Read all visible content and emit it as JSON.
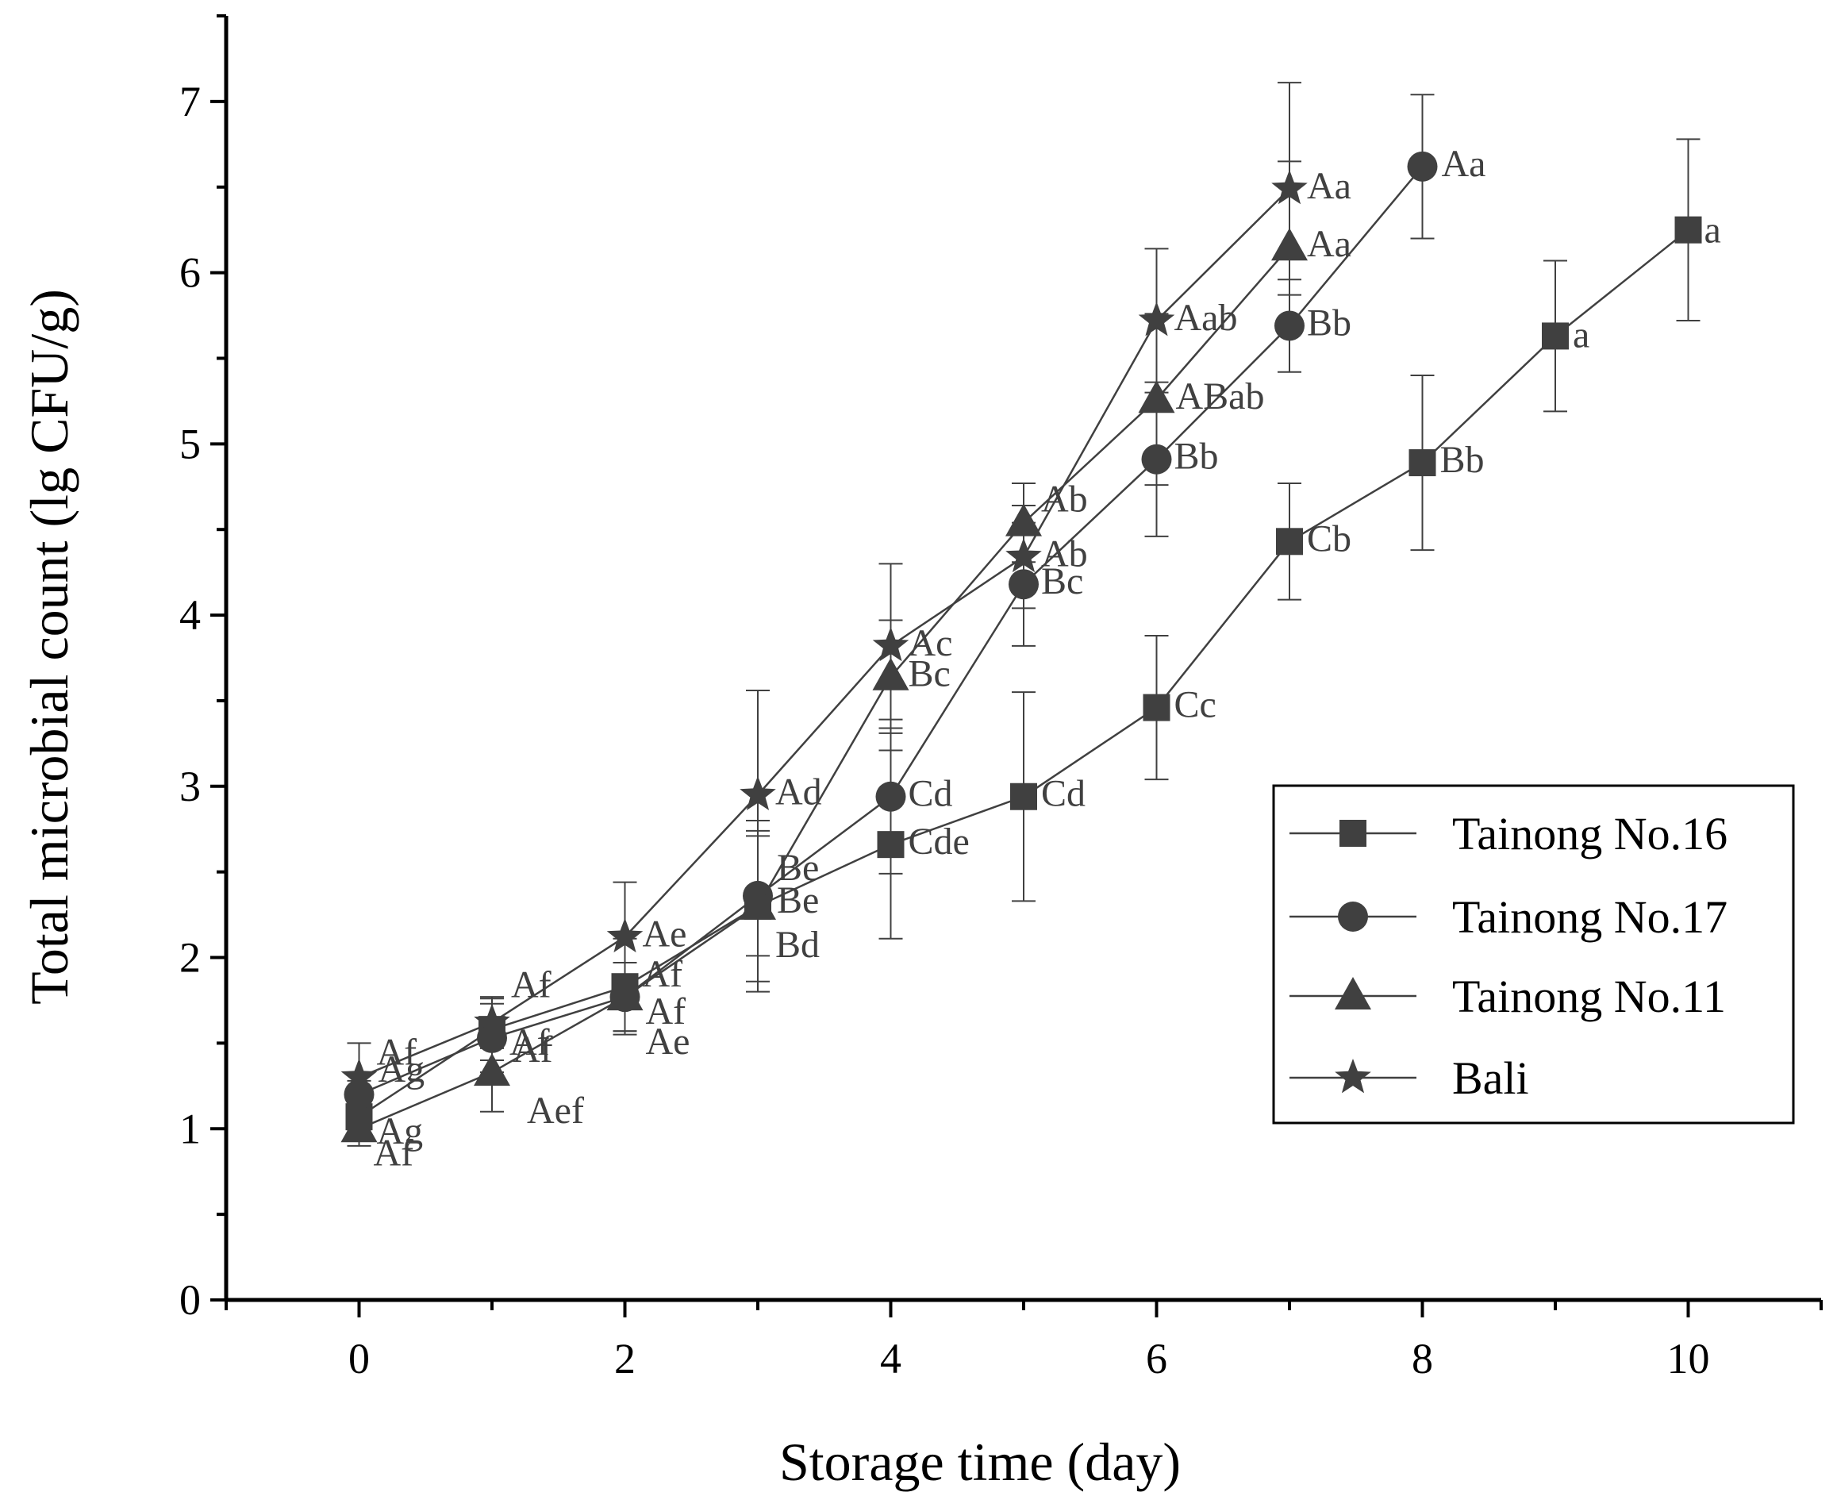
{
  "chart_data": {
    "type": "line",
    "xlabel": "Storage time (day)",
    "ylabel": "Total microbial count (lg CFU/g)",
    "xlim": [
      -1,
      11
    ],
    "ylim": [
      0,
      7.5
    ],
    "xticks": [
      0,
      2,
      4,
      6,
      8,
      10
    ],
    "yticks": [
      0,
      1,
      2,
      3,
      4,
      5,
      6,
      7
    ],
    "x_tick_labels": [
      "0",
      "2",
      "4",
      "6",
      "8",
      "10"
    ],
    "y_tick_labels": [
      "0",
      "1",
      "2",
      "3",
      "4",
      "5",
      "6",
      "7"
    ],
    "legend_position": "right",
    "colors": {
      "series": "#404040",
      "axis": "#000000"
    },
    "series": [
      {
        "name": "Tainong No.16",
        "marker": "square",
        "x": [
          0,
          1,
          2,
          3,
          4,
          5,
          6,
          7,
          8,
          9,
          10
        ],
        "y": [
          1.07,
          1.58,
          1.83,
          2.3,
          2.66,
          2.94,
          3.46,
          4.43,
          4.89,
          5.63,
          6.25
        ],
        "err": [
          0.08,
          0.18,
          0.28,
          0.5,
          0.55,
          0.61,
          0.42,
          0.34,
          0.51,
          0.44,
          0.53
        ],
        "labels": [
          "Ag",
          "Af",
          "Af",
          "Be",
          "Cde",
          "Cd",
          "Cc",
          "Cb",
          "Bb",
          "a",
          "a"
        ]
      },
      {
        "name": "Tainong No.17",
        "marker": "circle",
        "x": [
          0,
          1,
          2,
          3,
          4,
          5,
          6,
          7,
          8
        ],
        "y": [
          1.2,
          1.53,
          1.77,
          2.36,
          2.94,
          4.18,
          4.91,
          5.69,
          6.62
        ],
        "err": [
          0.08,
          0.2,
          0.2,
          0.35,
          0.45,
          0.36,
          0.45,
          0.27,
          0.42
        ],
        "labels": [
          "Ag",
          "Af",
          "Af",
          "Be",
          "Cd",
          "Bc",
          "Bb",
          "Bb",
          "Aa"
        ]
      },
      {
        "name": "Tainong No.11",
        "marker": "triangle",
        "x": [
          0,
          1,
          2,
          3,
          4,
          5,
          6,
          7
        ],
        "y": [
          1.0,
          1.33,
          1.77,
          2.3,
          3.64,
          4.54,
          5.26,
          6.15
        ],
        "err": [
          0.1,
          0.23,
          0.2,
          0.44,
          0.33,
          0.23,
          0.5,
          0.5
        ],
        "labels": [
          "Af",
          "Aef",
          "Ae",
          "Bd",
          "Bc",
          "Ab",
          "ABab",
          "Aa"
        ]
      },
      {
        "name": "Bali",
        "marker": "star",
        "x": [
          0,
          1,
          2,
          3,
          4,
          5,
          6,
          7
        ],
        "y": [
          1.3,
          1.62,
          2.12,
          2.95,
          3.82,
          4.34,
          5.72,
          6.49
        ],
        "err": [
          0.2,
          0.15,
          0.32,
          0.61,
          0.48,
          0.3,
          0.42,
          0.62
        ],
        "labels": [
          "Af",
          "Af",
          "Ae",
          "Ad",
          "Ac",
          "Ab",
          "Aab",
          "Aa"
        ]
      }
    ]
  }
}
